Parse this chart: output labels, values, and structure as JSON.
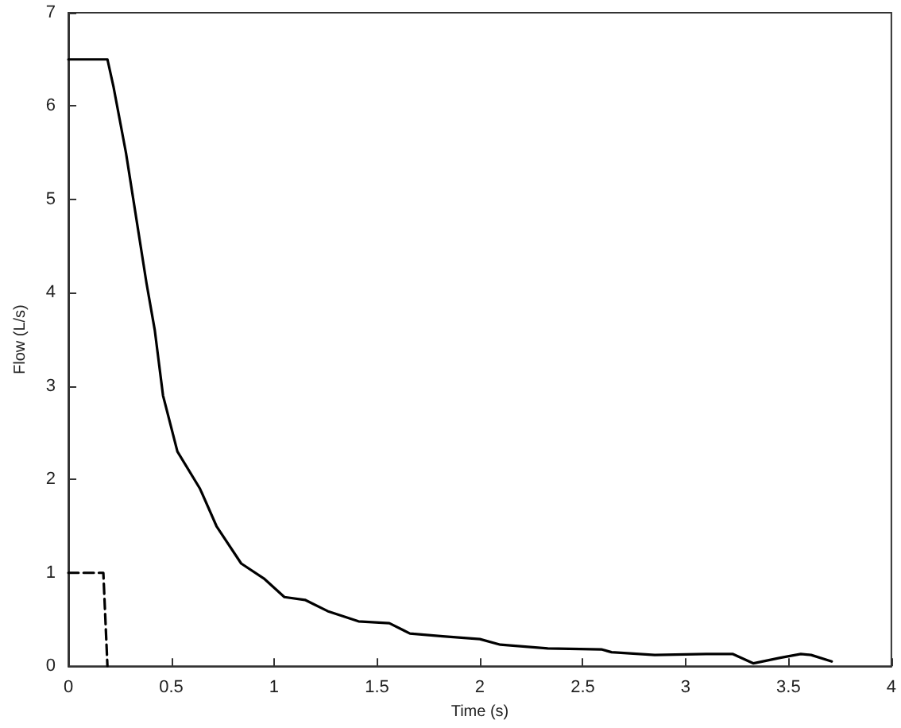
{
  "chart_data": {
    "type": "line",
    "xlabel": "Time (s)",
    "ylabel": "Flow (L/s)",
    "xlim": [
      0,
      4
    ],
    "xticks": [
      0,
      0.5,
      1,
      1.5,
      2,
      2.5,
      3,
      3.5,
      4
    ],
    "ylim": [
      0,
      7
    ],
    "yticks": [
      0,
      1,
      2,
      3,
      4,
      5,
      6,
      7
    ],
    "grid": false,
    "marker": "none",
    "series": [
      {
        "color": "#000000",
        "line_style": "solid",
        "x": [
          0,
          0.19,
          0.22,
          0.28,
          0.33,
          0.38,
          0.42,
          0.46,
          0.53,
          0.64,
          0.72,
          0.84,
          0.95,
          1.05,
          1.15,
          1.26,
          1.41,
          1.56,
          1.66,
          1.82,
          2.0,
          2.1,
          2.33,
          2.59,
          2.64,
          2.85,
          3.1,
          3.23,
          3.33,
          3.46,
          3.56,
          3.61,
          3.71
        ],
        "values": [
          6.5,
          6.5,
          6.2,
          5.5,
          4.8,
          4.1,
          3.6,
          2.9,
          2.3,
          1.9,
          1.5,
          1.1,
          0.94,
          0.74,
          0.71,
          0.59,
          0.48,
          0.46,
          0.35,
          0.32,
          0.29,
          0.23,
          0.19,
          0.18,
          0.15,
          0.12,
          0.13,
          0.13,
          0.03,
          0.09,
          0.13,
          0.12,
          0.05
        ]
      },
      {
        "color": "#000000",
        "line_style": "dashed",
        "x": [
          0,
          0.17,
          0.19
        ],
        "values": [
          1,
          1,
          0
        ]
      }
    ]
  }
}
